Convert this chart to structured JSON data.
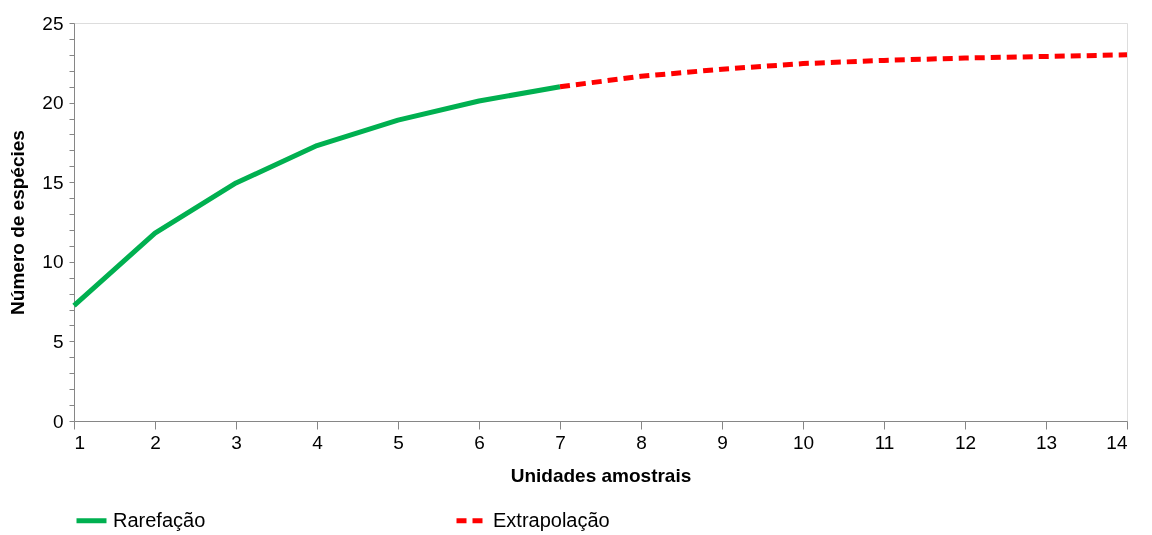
{
  "chart_data": {
    "type": "line",
    "xlabel": "Unidades amostrais",
    "ylabel": "Número de espécies",
    "xlim": [
      1,
      14
    ],
    "xticks": [
      1,
      2,
      3,
      4,
      5,
      6,
      7,
      8,
      9,
      10,
      11,
      12,
      13,
      14
    ],
    "ylim": [
      0,
      25
    ],
    "yticks": [
      0,
      {
        "value": 1,
        "label": null
      },
      {
        "value": 2,
        "label": null
      },
      {
        "value": 3,
        "label": null
      },
      {
        "value": 4,
        "label": null
      },
      5,
      {
        "value": 6,
        "label": null
      },
      {
        "value": 7,
        "label": null
      },
      {
        "value": 8,
        "label": null
      },
      {
        "value": 9,
        "label": null
      },
      10,
      {
        "value": 11,
        "label": null
      },
      {
        "value": 12,
        "label": null
      },
      {
        "value": 13,
        "label": null
      },
      {
        "value": 14,
        "label": null
      },
      15,
      {
        "value": 16,
        "label": null
      },
      {
        "value": 17,
        "label": null
      },
      {
        "value": 18,
        "label": null
      },
      {
        "value": 19,
        "label": null
      },
      20,
      {
        "value": 21,
        "label": null
      },
      {
        "value": 22,
        "label": null
      },
      {
        "value": 23,
        "label": null
      },
      {
        "value": 24,
        "label": null
      },
      25
    ],
    "grid": false,
    "legend": "bottom",
    "marker": "none",
    "series": [
      {
        "name": "Rarefação",
        "color": "#00b050",
        "line_style": "solid",
        "x": [
          1,
          2,
          3,
          4,
          5,
          6,
          7
        ],
        "values": [
          7.25,
          11.8,
          14.95,
          17.3,
          18.9,
          20.1,
          21.0
        ]
      },
      {
        "name": "Extrapolação",
        "color": "#ff0000",
        "line_style": "dashed",
        "x": [
          7,
          8,
          9,
          10,
          11,
          12,
          13,
          14
        ],
        "values": [
          21.0,
          21.65,
          22.1,
          22.45,
          22.65,
          22.8,
          22.9,
          23.0
        ]
      }
    ]
  }
}
